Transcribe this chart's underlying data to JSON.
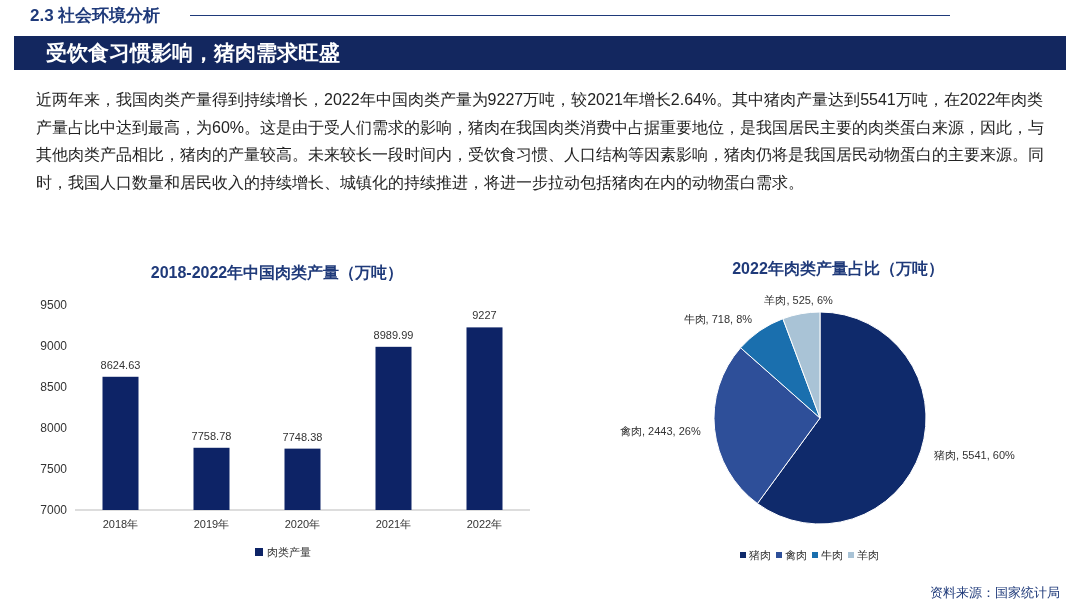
{
  "chart_data": [
    {
      "type": "other",
      "subtitle": "2.3 社会环境分析",
      "title": "受饮食习惯影响，猪肉需求旺盛",
      "annotations": [
        "近两年来，我国肉类产量得到持续增长，2022年中国肉类产量为9227万吨，较2021年增长2.64%。其中猪肉产量达到5541万吨，在2022年肉类产量占比中达到最高，为60%。这是由于受人们需求的影响，猪肉在我国肉类消费中占据重要地位，是我国居民主要的肉类蛋白来源，因此，与其他肉类产品相比，猪肉的产量较高。未来较长一段时间内，受饮食习惯、人口结构等因素影响，猪肉仍将是我国居民动物蛋白的主要来源。同时，我国人口数量和居民收入的持续增长、城镇化的持续推进，将进一步拉动包括猪肉在内的动物蛋白需求。",
        "资料来源：国家统计局"
      ]
    },
    {
      "type": "bar",
      "title": "2018-2022年中国肉类产量（万吨）",
      "categories": [
        "2018年",
        "2019年",
        "2020年",
        "2021年",
        "2022年"
      ],
      "series": [
        {
          "name": "肉类产量",
          "color": "#0d2366",
          "values": [
            8624.63,
            7758.78,
            7748.38,
            8989.99,
            9227
          ]
        }
      ],
      "ylim": [
        7000,
        9500
      ],
      "yticks": [
        7000,
        7500,
        8000,
        8500,
        9000,
        9500
      ],
      "data_labels": true,
      "legend": "bottom"
    },
    {
      "type": "pie",
      "title": "2022年肉类产量占比（万吨）",
      "categories": [
        "猪肉",
        "禽肉",
        "牛肉",
        "羊肉"
      ],
      "values": [
        5541,
        2443,
        718,
        525
      ],
      "colors": [
        "#0f2a6b",
        "#2e4f99",
        "#1a6fae",
        "#a9c3d6"
      ],
      "value_labels": [
        "猪肉, 5541, 60%",
        "禽肉, 2443, 26%",
        "牛肉, 718, 8%",
        "羊肉, 525, 6%"
      ],
      "legend": "bottom"
    }
  ]
}
